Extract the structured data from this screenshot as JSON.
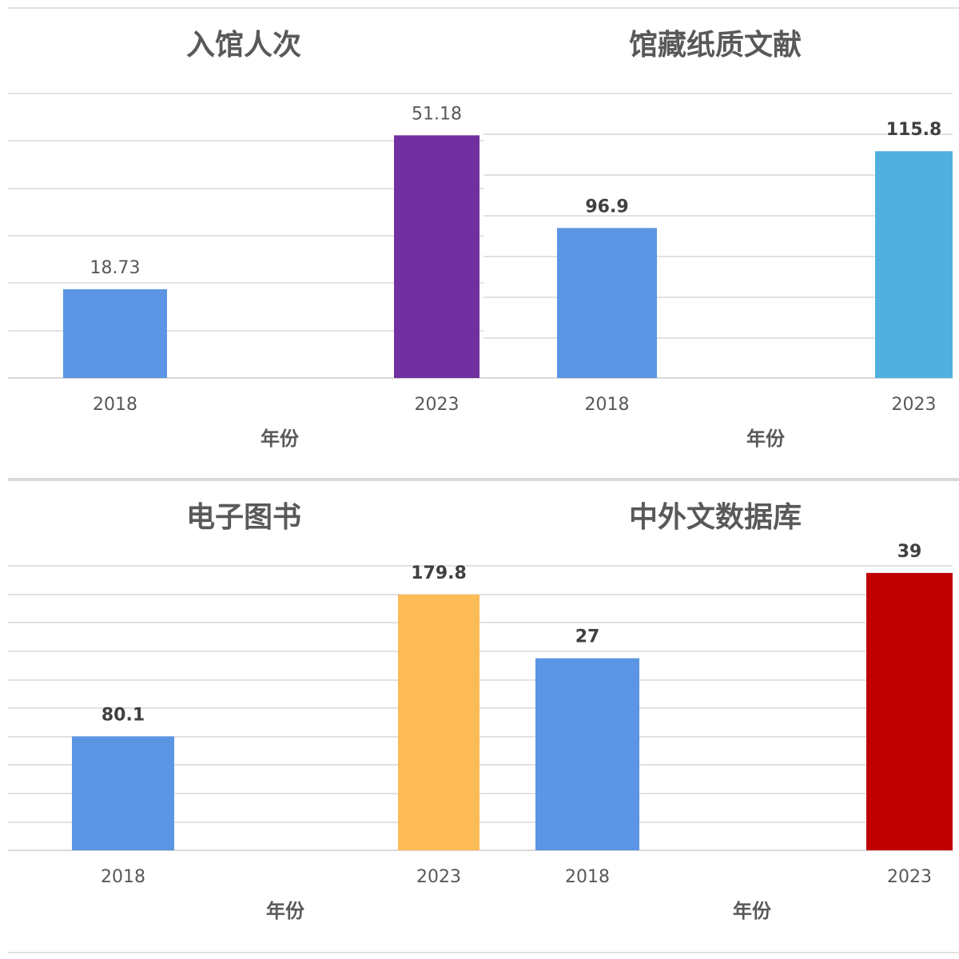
{
  "chart_data": [
    {
      "type": "bar",
      "title": "入馆人次",
      "categories": [
        "2018",
        "2023"
      ],
      "values": [
        18.73,
        51.18
      ],
      "value_labels": [
        "18.73",
        "51.18"
      ],
      "bar_colors": [
        "#5b95e3",
        "#70309f"
      ],
      "xlabel": "年份",
      "ylabel": "",
      "ylim": [
        0,
        60
      ],
      "grid": true,
      "label_weight": "normal"
    },
    {
      "type": "bar",
      "title": "馆藏纸质文献",
      "categories": [
        "2018",
        "2023"
      ],
      "values": [
        96.9,
        115.8
      ],
      "value_labels": [
        "96.9",
        "115.8"
      ],
      "bar_colors": [
        "#5b95e3",
        "#50b1e0"
      ],
      "xlabel": "年份",
      "ylabel": "",
      "ylim": [
        60,
        130
      ],
      "grid": true,
      "label_weight": "bold"
    },
    {
      "type": "bar",
      "title": "电子图书",
      "categories": [
        "2018",
        "2023"
      ],
      "values": [
        80.1,
        179.8
      ],
      "value_labels": [
        "80.1",
        "179.8"
      ],
      "bar_colors": [
        "#5b95e3",
        "#fdbb57"
      ],
      "xlabel": "年份",
      "ylabel": "",
      "ylim": [
        0,
        200
      ],
      "grid": true,
      "label_weight": "bold"
    },
    {
      "type": "bar",
      "title": "中外文数据库",
      "categories": [
        "2018",
        "2023"
      ],
      "values": [
        27,
        39
      ],
      "value_labels": [
        "27",
        "39"
      ],
      "bar_colors": [
        "#5b95e3",
        "#c00000"
      ],
      "xlabel": "年份",
      "ylabel": "",
      "ylim": [
        0,
        40
      ],
      "grid": true,
      "label_weight": "bold"
    }
  ],
  "colors": {
    "title": "#595959",
    "axis_text": "#595959",
    "value_label": "#404040",
    "grid": "#d9d9d9",
    "separator": "#d9d9d9"
  }
}
